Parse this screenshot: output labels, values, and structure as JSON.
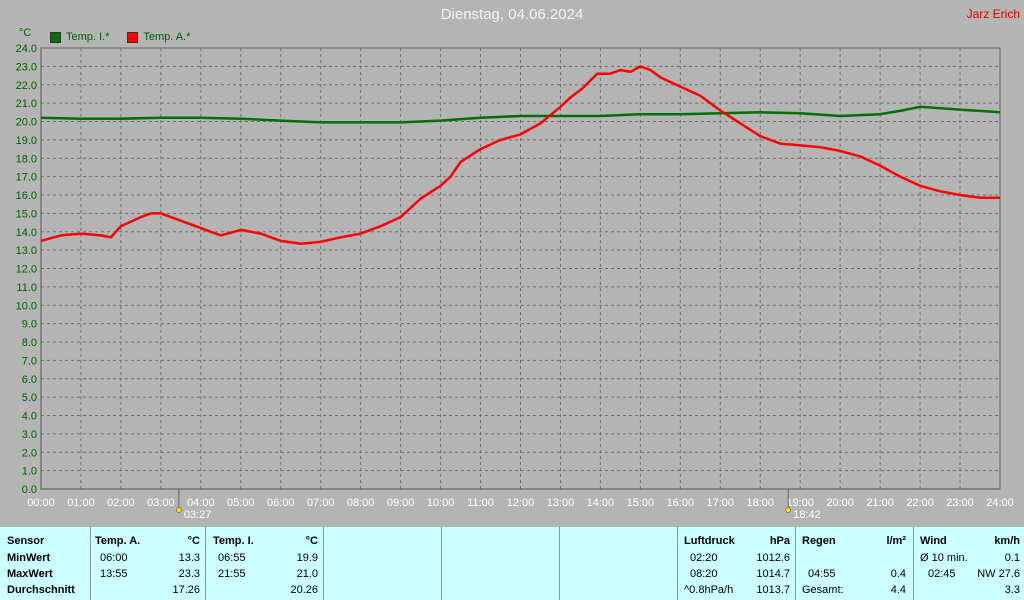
{
  "header": {
    "title": "Dienstag, 04.06.2024",
    "author": "Jarz Erich",
    "unit": "°C"
  },
  "legend": [
    {
      "label": "Temp. I.*",
      "color": "#007000"
    },
    {
      "label": "Temp. A.*",
      "color": "#ff0000"
    }
  ],
  "sun": {
    "rise": "03:27",
    "set": "18:42",
    "rise_hour": 3.45,
    "set_hour": 18.7
  },
  "chart_data": {
    "type": "line",
    "ylim": [
      0,
      24
    ],
    "yticks": [
      "0.0",
      "1.0",
      "2.0",
      "3.0",
      "4.0",
      "5.0",
      "6.0",
      "7.0",
      "8.0",
      "9.0",
      "10.0",
      "11.0",
      "12.0",
      "13.0",
      "14.0",
      "15.0",
      "16.0",
      "17.0",
      "18.0",
      "19.0",
      "20.0",
      "21.0",
      "22.0",
      "23.0",
      "24.0"
    ],
    "xlim": [
      0,
      24
    ],
    "xticks": [
      "00:00",
      "01:00",
      "02:00",
      "03:00",
      "04:00",
      "05:00",
      "06:00",
      "07:00",
      "08:00",
      "09:00",
      "10:00",
      "11:00",
      "12:00",
      "13:00",
      "14:00",
      "15:00",
      "16:00",
      "17:00",
      "18:00",
      "19:00",
      "20:00",
      "21:00",
      "22:00",
      "23:00",
      "24:00"
    ],
    "series": [
      {
        "name": "Temp. I.*",
        "color": "#007000",
        "x": [
          0,
          1,
          2,
          3,
          4,
          5,
          6,
          7,
          8,
          9,
          10,
          11,
          12,
          13,
          14,
          15,
          16,
          17,
          18,
          19,
          20,
          21,
          21.55,
          22,
          23,
          24
        ],
        "y": [
          20.2,
          20.15,
          20.15,
          20.2,
          20.2,
          20.15,
          20.05,
          19.95,
          19.95,
          19.95,
          20.05,
          20.2,
          20.3,
          20.3,
          20.3,
          20.4,
          20.4,
          20.45,
          20.5,
          20.45,
          20.3,
          20.4,
          20.6,
          20.8,
          20.65,
          20.5
        ]
      },
      {
        "name": "Temp. A.*",
        "color": "#ff0000",
        "x": [
          0,
          0.5,
          1,
          1.5,
          1.75,
          2,
          2.5,
          2.75,
          3,
          3.5,
          4,
          4.25,
          4.5,
          5,
          5.5,
          6,
          6.5,
          7,
          7.5,
          8,
          8.5,
          9,
          9.5,
          10,
          10.25,
          10.5,
          11,
          11.5,
          12,
          12.5,
          13,
          13.25,
          13.55,
          13.92,
          14.25,
          14.5,
          14.75,
          15,
          15.25,
          15.5,
          16,
          16.5,
          17,
          17.5,
          18,
          18.5,
          19,
          19.5,
          20,
          20.5,
          21,
          21.5,
          22,
          22.5,
          23,
          23.5,
          24
        ],
        "y": [
          13.5,
          13.8,
          13.9,
          13.8,
          13.7,
          14.3,
          14.8,
          15.0,
          15.0,
          14.6,
          14.2,
          14.0,
          13.8,
          14.1,
          13.9,
          13.5,
          13.35,
          13.45,
          13.7,
          13.9,
          14.3,
          14.8,
          15.8,
          16.5,
          17.0,
          17.8,
          18.5,
          19.0,
          19.3,
          19.9,
          20.8,
          21.3,
          21.8,
          22.6,
          22.6,
          22.8,
          22.7,
          23.0,
          22.8,
          22.4,
          21.9,
          21.4,
          20.6,
          19.9,
          19.2,
          18.8,
          18.7,
          18.6,
          18.4,
          18.1,
          17.6,
          17.0,
          16.5,
          16.2,
          16.0,
          15.85,
          15.85
        ]
      }
    ]
  },
  "table": {
    "sensor": {
      "header": "Sensor",
      "rows": [
        "MinWert",
        "MaxWert",
        "Durchschnitt"
      ]
    },
    "temp_a": {
      "header": "Temp. A.",
      "unit": "°C",
      "min_time": "06:00",
      "min_val": "13.3",
      "max_time": "13:55",
      "max_val": "23.3",
      "avg": "17.26"
    },
    "temp_i": {
      "header": "Temp. I.",
      "unit": "°C",
      "min_time": "06:55",
      "min_val": "19.9",
      "max_time": "21:55",
      "max_val": "21.0",
      "avg": "20.26"
    },
    "luftdruck": {
      "header": "Luftdruck",
      "unit": "hPa",
      "r1_time": "02:20",
      "r1_val": "1012.6",
      "r2_time": "08:20",
      "r2_val": "1014.7",
      "r3_time": "^0.8hPa/h",
      "r3_val": "1013.7"
    },
    "regen": {
      "header": "Regen",
      "unit": "l/m²",
      "r2_time": "04:55",
      "r2_val": "0.4",
      "r3_label": "Gesamt:",
      "r3_val": "4.4"
    },
    "wind": {
      "header": "Wind",
      "unit": "km/h",
      "r1_label": "Ø 10 min.",
      "r1_val": "0.1",
      "r2_time": "02:45",
      "r2_val": "NW 27.6",
      "r3_val": "3.3"
    }
  }
}
